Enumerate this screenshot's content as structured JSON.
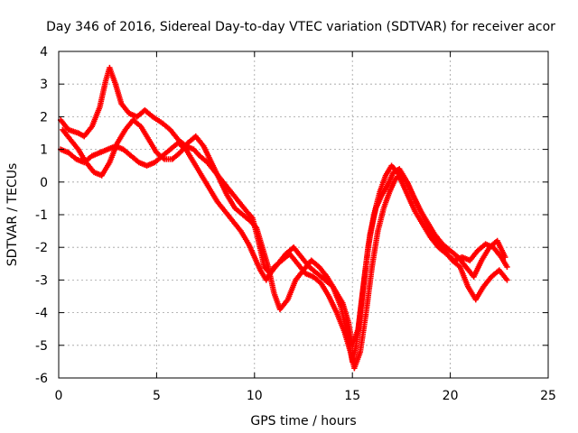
{
  "chart_data": {
    "type": "scatter",
    "title": "Day 346 of 2016, Sidereal Day-to-day VTEC variation (SDTVAR) for receiver acor",
    "xlabel": "GPS time / hours",
    "ylabel": "SDTVAR / TECUs",
    "xlim": [
      0,
      25
    ],
    "ylim": [
      -6,
      4
    ],
    "xticks": [
      0,
      5,
      10,
      15,
      20,
      25
    ],
    "yticks": [
      -6,
      -5,
      -4,
      -3,
      -2,
      -1,
      0,
      1,
      2,
      3,
      4
    ],
    "grid": true,
    "marker": "plus",
    "color": "#ff0000",
    "series": [
      {
        "x": [
          0.1,
          0.5,
          1.0,
          1.3,
          1.7,
          2.1,
          2.4,
          2.6,
          2.9,
          3.2,
          3.6,
          4.0,
          4.4,
          4.8,
          5.3,
          5.7,
          6.1,
          6.5,
          6.9,
          7.2,
          7.6,
          8.0,
          8.4,
          8.8,
          9.2,
          9.6,
          9.9,
          10.2,
          10.5,
          10.8,
          11.2,
          11.6,
          12.0,
          12.4,
          12.8,
          13.2,
          13.6,
          14.0,
          14.4,
          14.8,
          15.0,
          15.2,
          15.5,
          15.8,
          16.1,
          16.4,
          16.7,
          17.0,
          17.3,
          17.6,
          17.9,
          18.2,
          18.6,
          19.0,
          19.4,
          19.8,
          20.2,
          20.6,
          21.0,
          21.4,
          21.8,
          22.2,
          22.6,
          22.9
        ],
        "y": [
          1.9,
          1.6,
          1.5,
          1.4,
          1.7,
          2.3,
          3.1,
          3.5,
          3.0,
          2.4,
          2.1,
          2.0,
          2.2,
          2.0,
          1.8,
          1.6,
          1.3,
          1.1,
          1.0,
          0.8,
          0.6,
          0.3,
          0.0,
          -0.3,
          -0.6,
          -0.9,
          -1.1,
          -1.8,
          -2.6,
          -2.8,
          -2.5,
          -2.2,
          -2.0,
          -2.3,
          -2.6,
          -2.8,
          -3.0,
          -3.2,
          -3.8,
          -4.8,
          -5.5,
          -5.0,
          -3.5,
          -2.0,
          -1.0,
          -0.3,
          0.2,
          0.5,
          0.3,
          -0.1,
          -0.5,
          -0.9,
          -1.3,
          -1.7,
          -2.0,
          -2.2,
          -2.4,
          -2.3,
          -2.4,
          -2.1,
          -1.9,
          -2.0,
          -2.3,
          -2.6
        ]
      },
      {
        "x": [
          0.1,
          0.5,
          0.9,
          1.3,
          1.7,
          2.1,
          2.5,
          2.9,
          3.3,
          3.7,
          4.1,
          4.5,
          4.9,
          5.3,
          5.7,
          6.1,
          6.5,
          6.9,
          7.3,
          7.7,
          8.1,
          8.5,
          8.9,
          9.3,
          9.7,
          10.0,
          10.3,
          10.6,
          11.0,
          11.4,
          11.8,
          12.2,
          12.6,
          13.0,
          13.4,
          13.8,
          14.2,
          14.6,
          14.9,
          15.1,
          15.4,
          15.7,
          16.0,
          16.3,
          16.6,
          16.9,
          17.2,
          17.5,
          17.8,
          18.1,
          18.5,
          18.9,
          19.3,
          19.7,
          20.1,
          20.5,
          20.9,
          21.3,
          21.7,
          22.1,
          22.5,
          22.9
        ],
        "y": [
          1.0,
          0.9,
          0.7,
          0.6,
          0.8,
          0.9,
          1.0,
          1.1,
          1.0,
          0.8,
          0.6,
          0.5,
          0.6,
          0.8,
          1.0,
          1.2,
          1.0,
          0.6,
          0.2,
          -0.2,
          -0.6,
          -0.9,
          -1.2,
          -1.5,
          -1.9,
          -2.3,
          -2.7,
          -3.0,
          -2.6,
          -2.4,
          -2.2,
          -2.5,
          -2.8,
          -2.9,
          -3.1,
          -3.5,
          -4.0,
          -4.6,
          -5.2,
          -5.7,
          -5.2,
          -4.0,
          -2.6,
          -1.5,
          -0.8,
          -0.3,
          0.1,
          0.2,
          0.0,
          -0.4,
          -0.9,
          -1.4,
          -1.8,
          -2.1,
          -2.4,
          -2.6,
          -3.2,
          -3.6,
          -3.2,
          -2.9,
          -2.7,
          -3.0
        ]
      },
      {
        "x": [
          0.2,
          0.6,
          1.0,
          1.4,
          1.8,
          2.2,
          2.6,
          3.0,
          3.4,
          3.8,
          4.2,
          4.6,
          5.0,
          5.4,
          5.8,
          6.2,
          6.6,
          7.0,
          7.4,
          7.8,
          8.2,
          8.6,
          9.0,
          9.4,
          9.8,
          10.1,
          10.4,
          10.7,
          11.0,
          11.3,
          11.7,
          12.1,
          12.5,
          12.9,
          13.3,
          13.7,
          14.1,
          14.5,
          14.8,
          15.0,
          15.3,
          15.6,
          15.9,
          16.2,
          16.5,
          16.8,
          17.1,
          17.4,
          17.7,
          18.0,
          18.4,
          18.8,
          19.2,
          19.6,
          20.0,
          20.4,
          20.8,
          21.2,
          21.6,
          22.0,
          22.4,
          22.8
        ],
        "y": [
          1.6,
          1.3,
          1.0,
          0.6,
          0.3,
          0.2,
          0.6,
          1.2,
          1.6,
          1.9,
          1.7,
          1.3,
          0.9,
          0.7,
          0.7,
          0.9,
          1.2,
          1.4,
          1.1,
          0.6,
          0.1,
          -0.4,
          -0.8,
          -1.0,
          -1.2,
          -1.4,
          -2.0,
          -2.6,
          -3.4,
          -3.9,
          -3.6,
          -3.0,
          -2.7,
          -2.4,
          -2.6,
          -2.9,
          -3.3,
          -3.7,
          -4.3,
          -5.0,
          -4.5,
          -3.0,
          -1.6,
          -0.8,
          -0.4,
          -0.1,
          0.3,
          0.4,
          0.1,
          -0.3,
          -0.8,
          -1.2,
          -1.6,
          -1.9,
          -2.1,
          -2.3,
          -2.6,
          -2.9,
          -2.4,
          -2.0,
          -1.8,
          -2.3
        ]
      }
    ]
  }
}
